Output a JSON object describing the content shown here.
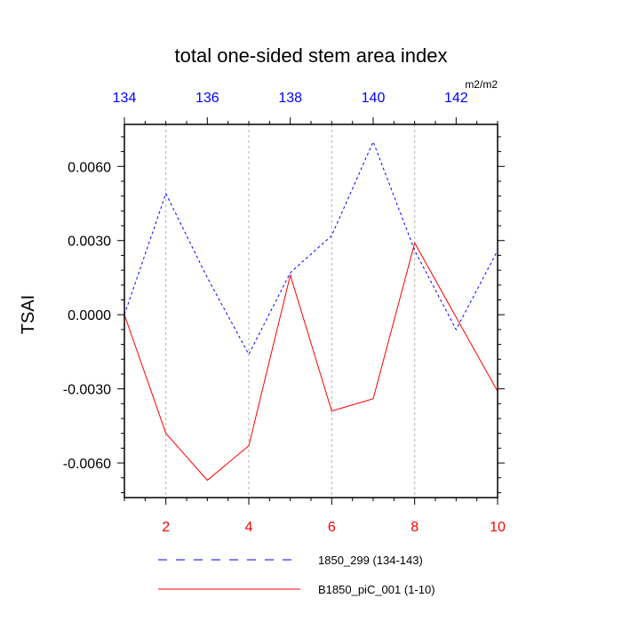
{
  "chart_data": {
    "type": "line",
    "title": "total one-sided stem area index",
    "units": "m2/m2",
    "ylabel": "TSAI",
    "xlim": [
      1,
      10
    ],
    "ylim": [
      -0.0074,
      0.0077
    ],
    "yticks": [
      -0.006,
      -0.003,
      0.0,
      0.003,
      0.006
    ],
    "ytick_labels": [
      "-0.0060",
      "-0.0030",
      "0.0000",
      "0.0030",
      "0.0060"
    ],
    "xticks_bottom": [
      2,
      4,
      6,
      8,
      10
    ],
    "xtick_labels_bottom": [
      "2",
      "4",
      "6",
      "8",
      "10"
    ],
    "xticks_top": [
      134,
      136,
      138,
      140,
      142
    ],
    "xtick_labels_top": [
      "134",
      "136",
      "138",
      "140",
      "142"
    ],
    "top_axis_offset": 133,
    "grid": "vertical-dashed",
    "legend": "bottom",
    "series": [
      {
        "name": "1850_299 (134-143)",
        "color": "#0000ff",
        "style": "dashed",
        "x": [
          1,
          2,
          3,
          4,
          5,
          6,
          7,
          8,
          9,
          10
        ],
        "y": [
          0.0,
          0.0049,
          0.0015,
          -0.0016,
          0.0017,
          0.0032,
          0.007,
          0.0026,
          -0.0006,
          0.0026
        ]
      },
      {
        "name": "B1850_piC_001 (1-10)",
        "color": "#ff0000",
        "style": "solid",
        "x": [
          1,
          2,
          3,
          4,
          5,
          6,
          7,
          8,
          9,
          10
        ],
        "y": [
          0.0,
          -0.0048,
          -0.0067,
          -0.0053,
          0.0016,
          -0.0039,
          -0.0034,
          0.0029,
          -0.0001,
          -0.0031
        ]
      }
    ]
  }
}
